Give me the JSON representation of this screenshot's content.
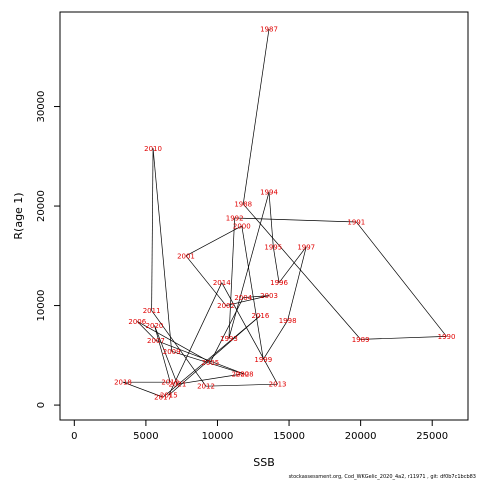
{
  "chart_data": {
    "type": "line",
    "xlabel": "SSB",
    "ylabel": "R(age 1)",
    "xlim": [
      -1000,
      27500
    ],
    "ylim": [
      -1500,
      39500
    ],
    "xticks": [
      0,
      5000,
      10000,
      15000,
      20000,
      25000
    ],
    "yticks": [
      0,
      10000,
      20000,
      30000
    ],
    "footnote": "stockassessment.org,  Cod_WKGelic_2020_4a2,  r11971  ,  git:  df0b7c1bcb83",
    "points": [
      {
        "year": "1987",
        "x": 13600,
        "y": 37800
      },
      {
        "year": "1988",
        "x": 11800,
        "y": 20200
      },
      {
        "year": "1989",
        "x": 20000,
        "y": 6600
      },
      {
        "year": "1990",
        "x": 26000,
        "y": 6900
      },
      {
        "year": "1991",
        "x": 19700,
        "y": 18400
      },
      {
        "year": "1992",
        "x": 11200,
        "y": 18800
      },
      {
        "year": "1993",
        "x": 10800,
        "y": 6700
      },
      {
        "year": "1994",
        "x": 13600,
        "y": 21400
      },
      {
        "year": "1995",
        "x": 13900,
        "y": 15900
      },
      {
        "year": "1996",
        "x": 14300,
        "y": 12300
      },
      {
        "year": "1997",
        "x": 16200,
        "y": 15900
      },
      {
        "year": "1998",
        "x": 14900,
        "y": 8500
      },
      {
        "year": "1999",
        "x": 13200,
        "y": 4600
      },
      {
        "year": "2000",
        "x": 11700,
        "y": 18000
      },
      {
        "year": "2001",
        "x": 7800,
        "y": 15000
      },
      {
        "year": "2002",
        "x": 10600,
        "y": 10000
      },
      {
        "year": "2003",
        "x": 13600,
        "y": 11000
      },
      {
        "year": "2004",
        "x": 11800,
        "y": 10800
      },
      {
        "year": "2005",
        "x": 9500,
        "y": 4300
      },
      {
        "year": "2006",
        "x": 4400,
        "y": 8400
      },
      {
        "year": "2007",
        "x": 5700,
        "y": 6500
      },
      {
        "year": "2008",
        "x": 11900,
        "y": 3100
      },
      {
        "year": "2009",
        "x": 6800,
        "y": 5400
      },
      {
        "year": "2010",
        "x": 5500,
        "y": 25800
      },
      {
        "year": "2011",
        "x": 5400,
        "y": 9500
      },
      {
        "year": "2012",
        "x": 9200,
        "y": 1900
      },
      {
        "year": "2013",
        "x": 14200,
        "y": 2100
      },
      {
        "year": "2014",
        "x": 10300,
        "y": 12300
      },
      {
        "year": "2015",
        "x": 6600,
        "y": 1000
      },
      {
        "year": "2016",
        "x": 13000,
        "y": 9000
      },
      {
        "year": "2017",
        "x": 6200,
        "y": 800
      },
      {
        "year": "2018",
        "x": 3400,
        "y": 2300
      },
      {
        "year": "2019",
        "x": 6700,
        "y": 2300
      },
      {
        "year": "2020",
        "x": 5600,
        "y": 8000
      },
      {
        "year": "2021",
        "x": 7200,
        "y": 2100
      },
      {
        "year": "2022",
        "x": 11600,
        "y": 3100
      }
    ]
  }
}
